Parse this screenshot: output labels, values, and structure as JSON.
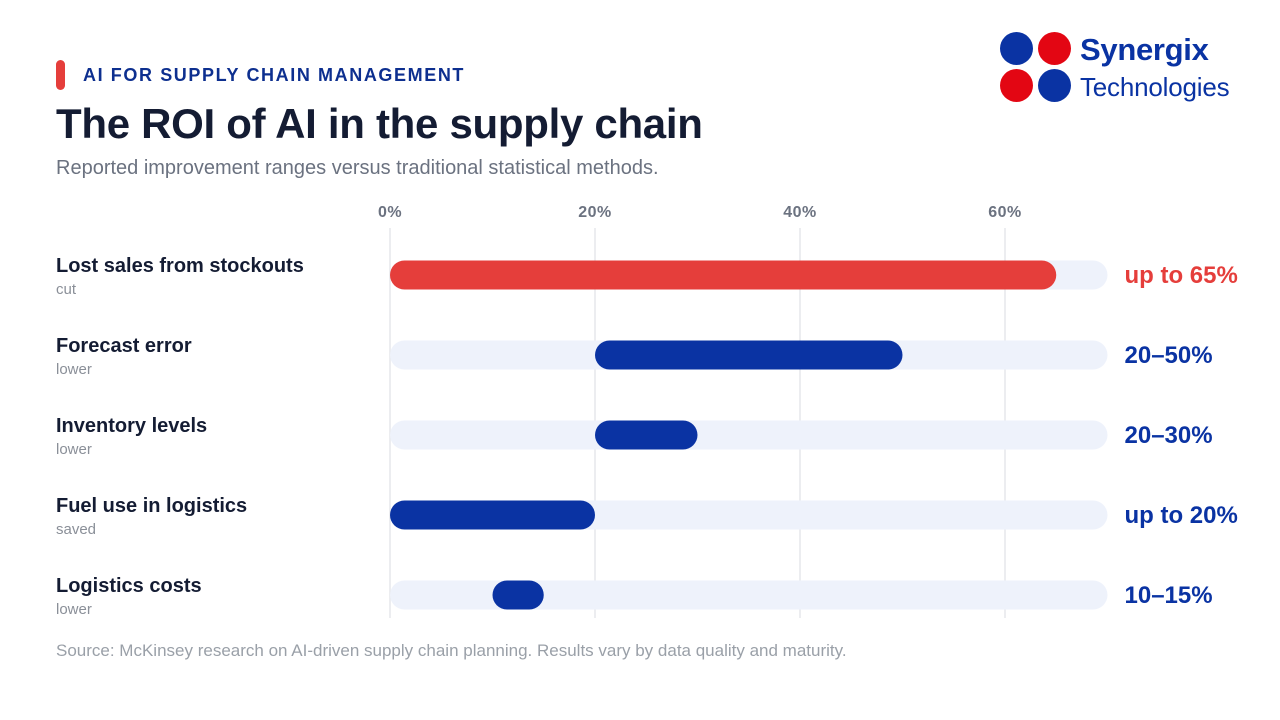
{
  "header": {
    "eyebrow": "AI FOR SUPPLY CHAIN MANAGEMENT",
    "title": "The ROI of AI in the supply chain",
    "subtitle": "Reported improvement ranges versus traditional statistical methods."
  },
  "logo": {
    "name": "Synergix",
    "sub": "Technologies",
    "colors": {
      "blue": "#0a33a3",
      "red": "#e30613"
    }
  },
  "chart_data": {
    "type": "bar",
    "orientation": "horizontal",
    "style": "range",
    "xlim": [
      0,
      70
    ],
    "ticks": [
      0,
      20,
      40,
      60
    ],
    "tick_labels": [
      "0%",
      "20%",
      "40%",
      "60%"
    ],
    "grid": true,
    "categories": [
      {
        "label": "Lost sales from stockouts",
        "sub": "cut",
        "low": 0,
        "high": 65,
        "value_label": "up to 65%",
        "highlight": true
      },
      {
        "label": "Forecast error",
        "sub": "lower",
        "low": 20,
        "high": 50,
        "value_label": "20–50%",
        "highlight": false
      },
      {
        "label": "Inventory levels",
        "sub": "lower",
        "low": 20,
        "high": 30,
        "value_label": "20–30%",
        "highlight": false
      },
      {
        "label": "Fuel use in logistics",
        "sub": "saved",
        "low": 0,
        "high": 20,
        "value_label": "up to 20%",
        "highlight": false
      },
      {
        "label": "Logistics costs",
        "sub": "lower",
        "low": 10,
        "high": 15,
        "value_label": "10–15%",
        "highlight": false
      }
    ],
    "colors": {
      "highlight": "#e53e3b",
      "bar": "#0a33a3",
      "track": "#eef2fb",
      "grid": "#e5e7eb",
      "tick": "#6b7280"
    }
  },
  "footer": {
    "source": "Source: McKinsey research on AI-driven supply chain planning. Results vary by data quality and maturity."
  }
}
